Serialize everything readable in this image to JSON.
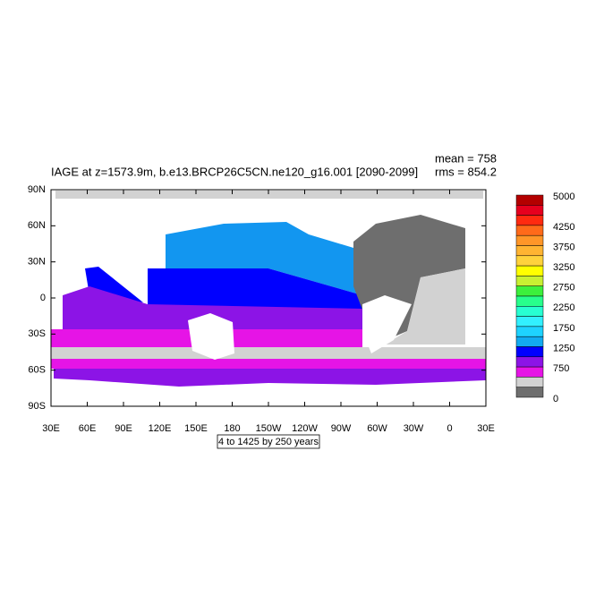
{
  "title": "IAGE at z=1573.9m, b.e13.BRCP26C5CN.ne120_g16.001 [2090-2099]",
  "stats": {
    "mean": "mean = 758",
    "rms": "rms = 854.2"
  },
  "lat_labels": [
    "90N",
    "60N",
    "30N",
    "0",
    "30S",
    "60S",
    "90S"
  ],
  "lon_labels": [
    "30E",
    "60E",
    "90E",
    "120E",
    "150E",
    "180",
    "150W",
    "120W",
    "90W",
    "60W",
    "30W",
    "0",
    "30E"
  ],
  "colorbar": {
    "colors": [
      "#b40000",
      "#e6001e",
      "#ff2a10",
      "#ff6a1a",
      "#ff9628",
      "#ffb432",
      "#ffd23c",
      "#ffff00",
      "#c8f032",
      "#3cf03c",
      "#28ff8c",
      "#28ffd2",
      "#32f0ff",
      "#1ed2ff",
      "#12aaf0",
      "#0000ff",
      "#8c14e6",
      "#e614e6",
      "#d2d2d2",
      "#6e6e6e"
    ],
    "labels": [
      {
        "label": "5000",
        "boundary": 0
      },
      {
        "label": "4250",
        "boundary": 3
      },
      {
        "label": "3750",
        "boundary": 5
      },
      {
        "label": "3250",
        "boundary": 7
      },
      {
        "label": "2750",
        "boundary": 9
      },
      {
        "label": "2250",
        "boundary": 11
      },
      {
        "label": "1750",
        "boundary": 13
      },
      {
        "label": "1250",
        "boundary": 15
      },
      {
        "label": "750",
        "boundary": 17
      },
      {
        "label": "0",
        "boundary": 20
      }
    ]
  },
  "footer": "4 to 1425 by 250 years"
}
